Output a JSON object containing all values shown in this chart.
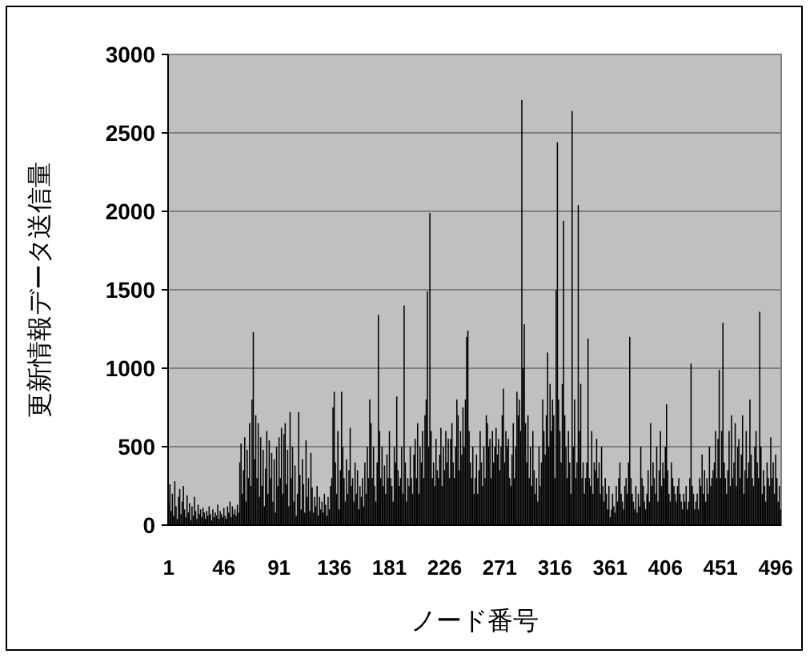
{
  "chart_data": {
    "type": "bar",
    "xlabel": "ノード番号",
    "ylabel": "更新情報データ送信量",
    "color": "#000000",
    "ylim": [
      0,
      3000
    ],
    "yticks": [
      0,
      500,
      1000,
      1500,
      2000,
      2500,
      3000
    ],
    "grid": "y",
    "categories": [
      "1",
      null,
      null,
      null,
      null,
      null,
      null,
      null,
      null,
      null,
      null,
      null,
      null,
      null,
      null,
      null,
      null,
      null,
      null,
      null,
      null,
      null,
      null,
      null,
      null,
      null,
      null,
      null,
      null,
      null,
      null,
      null,
      null,
      null,
      null,
      null,
      null,
      null,
      null,
      null,
      null,
      null,
      null,
      null,
      null,
      "46",
      null,
      null,
      null,
      null,
      null,
      null,
      null,
      null,
      null,
      null,
      null,
      null,
      null,
      null,
      null,
      null,
      null,
      null,
      null,
      null,
      null,
      null,
      null,
      null,
      null,
      null,
      null,
      null,
      null,
      null,
      null,
      null,
      null,
      null,
      null,
      null,
      null,
      null,
      null,
      null,
      null,
      null,
      null,
      null,
      "91",
      null,
      null,
      null,
      null,
      null,
      null,
      null,
      null,
      null,
      null,
      null,
      null,
      null,
      null,
      null,
      null,
      null,
      null,
      null,
      null,
      null,
      null,
      null,
      null,
      null,
      null,
      null,
      null,
      null,
      null,
      null,
      null,
      null,
      null,
      null,
      null,
      null,
      null,
      null,
      null,
      null,
      null,
      null,
      null,
      "136",
      null,
      null,
      null,
      null,
      null,
      null,
      null,
      null,
      null,
      null,
      null,
      null,
      null,
      null,
      null,
      null,
      null,
      null,
      null,
      null,
      null,
      null,
      null,
      null,
      null,
      null,
      null,
      null,
      null,
      null,
      null,
      null,
      null,
      null,
      null,
      null,
      null,
      null,
      null,
      null,
      null,
      null,
      null,
      null,
      "181",
      null,
      null,
      null,
      null,
      null,
      null,
      null,
      null,
      null,
      null,
      null,
      null,
      null,
      null,
      null,
      null,
      null,
      null,
      null,
      null,
      null,
      null,
      null,
      null,
      null,
      null,
      null,
      null,
      null,
      null,
      null,
      null,
      null,
      null,
      null,
      null,
      null,
      null,
      null,
      null,
      null,
      null,
      null,
      null,
      "226",
      null,
      null,
      null,
      null,
      null,
      null,
      null,
      null,
      null,
      null,
      null,
      null,
      null,
      null,
      null,
      null,
      null,
      null,
      null,
      null,
      null,
      null,
      null,
      null,
      null,
      null,
      null,
      null,
      null,
      null,
      null,
      null,
      null,
      null,
      null,
      null,
      null,
      null,
      null,
      null,
      null,
      null,
      null,
      null,
      "271",
      null,
      null,
      null,
      null,
      null,
      null,
      null,
      null,
      null,
      null,
      null,
      null,
      null,
      null,
      null,
      null,
      null,
      null,
      null,
      null,
      null,
      null,
      null,
      null,
      null,
      null,
      null,
      null,
      null,
      null,
      null,
      null,
      null,
      null,
      null,
      null,
      null,
      null,
      null,
      null,
      null,
      null,
      null,
      null,
      "316",
      null,
      null,
      null,
      null,
      null,
      null,
      null,
      null,
      null,
      null,
      null,
      null,
      null,
      null,
      null,
      null,
      null,
      null,
      null,
      null,
      null,
      null,
      null,
      null,
      null,
      null,
      null,
      null,
      null,
      null,
      null,
      null,
      null,
      null,
      null,
      null,
      null,
      null,
      null,
      null,
      null,
      null,
      null,
      null,
      "361",
      null,
      null,
      null,
      null,
      null,
      null,
      null,
      null,
      null,
      null,
      null,
      null,
      null,
      null,
      null,
      null,
      null,
      null,
      null,
      null,
      null,
      null,
      null,
      null,
      null,
      null,
      null,
      null,
      null,
      null,
      null,
      null,
      null,
      null,
      null,
      null,
      null,
      null,
      null,
      null,
      null,
      null,
      null,
      null,
      "406",
      null,
      null,
      null,
      null,
      null,
      null,
      null,
      null,
      null,
      null,
      null,
      null,
      null,
      null,
      null,
      null,
      null,
      null,
      null,
      null,
      null,
      null,
      null,
      null,
      null,
      null,
      null,
      null,
      null,
      null,
      null,
      null,
      null,
      null,
      null,
      null,
      null,
      null,
      null,
      null,
      null,
      null,
      null,
      null,
      "451",
      null,
      null,
      null,
      null,
      null,
      null,
      null,
      null,
      null,
      null,
      null,
      null,
      null,
      null,
      null,
      null,
      null,
      null,
      null,
      null,
      null,
      null,
      null,
      null,
      null,
      null,
      null,
      null,
      null,
      null,
      null,
      null,
      null,
      null,
      null,
      null,
      null,
      null,
      null,
      null,
      null,
      null,
      null,
      null,
      "496",
      null,
      null,
      null,
      null
    ],
    "values": [
      150,
      260,
      90,
      200,
      60,
      280,
      120,
      40,
      180,
      230,
      70,
      150,
      250,
      100,
      50,
      190,
      80,
      140,
      30,
      120,
      60,
      180,
      90,
      40,
      130,
      70,
      100,
      50,
      110,
      80,
      40,
      90,
      60,
      120,
      70,
      30,
      100,
      50,
      80,
      60,
      130,
      40,
      90,
      70,
      50,
      110,
      60,
      40,
      120,
      80,
      150,
      50,
      120,
      70,
      100,
      60,
      130,
      80,
      400,
      520,
      200,
      350,
      560,
      150,
      480,
      300,
      650,
      250,
      800,
      1230,
      420,
      700,
      300,
      650,
      180,
      560,
      250,
      480,
      120,
      360,
      600,
      200,
      540,
      300,
      460,
      150,
      420,
      80,
      500,
      250,
      560,
      300,
      620,
      200,
      580,
      650,
      260,
      480,
      120,
      720,
      300,
      500,
      150,
      380,
      60,
      200,
      720,
      320,
      100,
      420,
      260,
      80,
      540,
      180,
      300,
      90,
      460,
      240,
      80,
      180,
      120,
      250,
      60,
      180,
      100,
      150,
      80,
      200,
      130,
      60,
      180,
      100,
      250,
      300,
      750,
      850,
      400,
      200,
      600,
      100,
      350,
      850,
      500,
      300,
      150,
      420,
      200,
      350,
      620,
      250,
      300,
      150,
      400,
      200,
      350,
      100,
      250,
      180,
      300,
      120,
      400,
      200,
      500,
      300,
      800,
      650,
      300,
      500,
      250,
      150,
      400,
      1340,
      600,
      300,
      500,
      250,
      380,
      200,
      450,
      300,
      600,
      300,
      250,
      150,
      500,
      400,
      820,
      350,
      250,
      300,
      500,
      200,
      1400,
      400,
      150,
      300,
      250,
      500,
      300,
      200,
      450,
      550,
      300,
      650,
      200,
      500,
      400,
      600,
      300,
      700,
      800,
      1490,
      500,
      1990,
      600,
      300,
      400,
      250,
      550,
      350,
      300,
      450,
      620,
      250,
      500,
      350,
      600,
      400,
      550,
      300,
      550,
      650,
      400,
      300,
      500,
      800,
      700,
      350,
      600,
      450,
      750,
      500,
      800,
      1200,
      1240,
      600,
      400,
      300,
      500,
      200,
      300,
      450,
      200,
      350,
      600,
      400,
      250,
      500,
      300,
      700,
      650,
      500,
      550,
      300,
      600,
      400,
      500,
      620,
      450,
      550,
      350,
      500,
      700,
      870,
      400,
      600,
      500,
      550,
      300,
      250,
      450,
      650,
      300,
      500,
      850,
      700,
      800,
      600,
      2710,
      1000,
      1280,
      650,
      400,
      700,
      300,
      500,
      250,
      600,
      350,
      200,
      300,
      150,
      500,
      250,
      400,
      800,
      600,
      450,
      700,
      1100,
      500,
      900,
      600,
      800,
      700,
      300,
      1500,
      2440,
      800,
      600,
      400,
      900,
      1940,
      700,
      500,
      300,
      600,
      400,
      200,
      2640,
      500,
      800,
      300,
      400,
      2040,
      600,
      900,
      300,
      400,
      200,
      300,
      400,
      1190,
      300,
      250,
      600,
      200,
      400,
      350,
      550,
      300,
      400,
      200,
      500,
      250,
      150,
      300,
      200,
      100,
      250,
      50,
      100,
      200,
      120,
      80,
      250,
      150,
      300,
      400,
      200,
      150,
      100,
      250,
      300,
      200,
      400,
      1200,
      300,
      200,
      150,
      100,
      250,
      80,
      200,
      120,
      500,
      300,
      250,
      150,
      100,
      200,
      350,
      150,
      650,
      250,
      400,
      300,
      200,
      500,
      150,
      350,
      600,
      250,
      400,
      300,
      500,
      770,
      350,
      200,
      150,
      400,
      300,
      250,
      200,
      150,
      250,
      300,
      200,
      150,
      100,
      200,
      150,
      250,
      100,
      150,
      300,
      1030,
      250,
      200,
      100,
      150,
      200,
      100,
      300,
      250,
      450,
      200,
      350,
      150,
      300,
      200,
      500,
      250,
      300,
      350,
      400,
      600,
      300,
      550,
      990,
      300,
      600,
      1290,
      400,
      300,
      200,
      350,
      600,
      250,
      700,
      300,
      400,
      650,
      250,
      500,
      550,
      300,
      450,
      700,
      200,
      350,
      600,
      300,
      400,
      800,
      450,
      300,
      250,
      500,
      600,
      400,
      300,
      1360,
      500,
      200,
      350,
      250,
      150,
      400,
      300,
      250,
      560,
      300,
      400,
      200,
      450,
      300,
      150,
      250,
      100
    ]
  }
}
